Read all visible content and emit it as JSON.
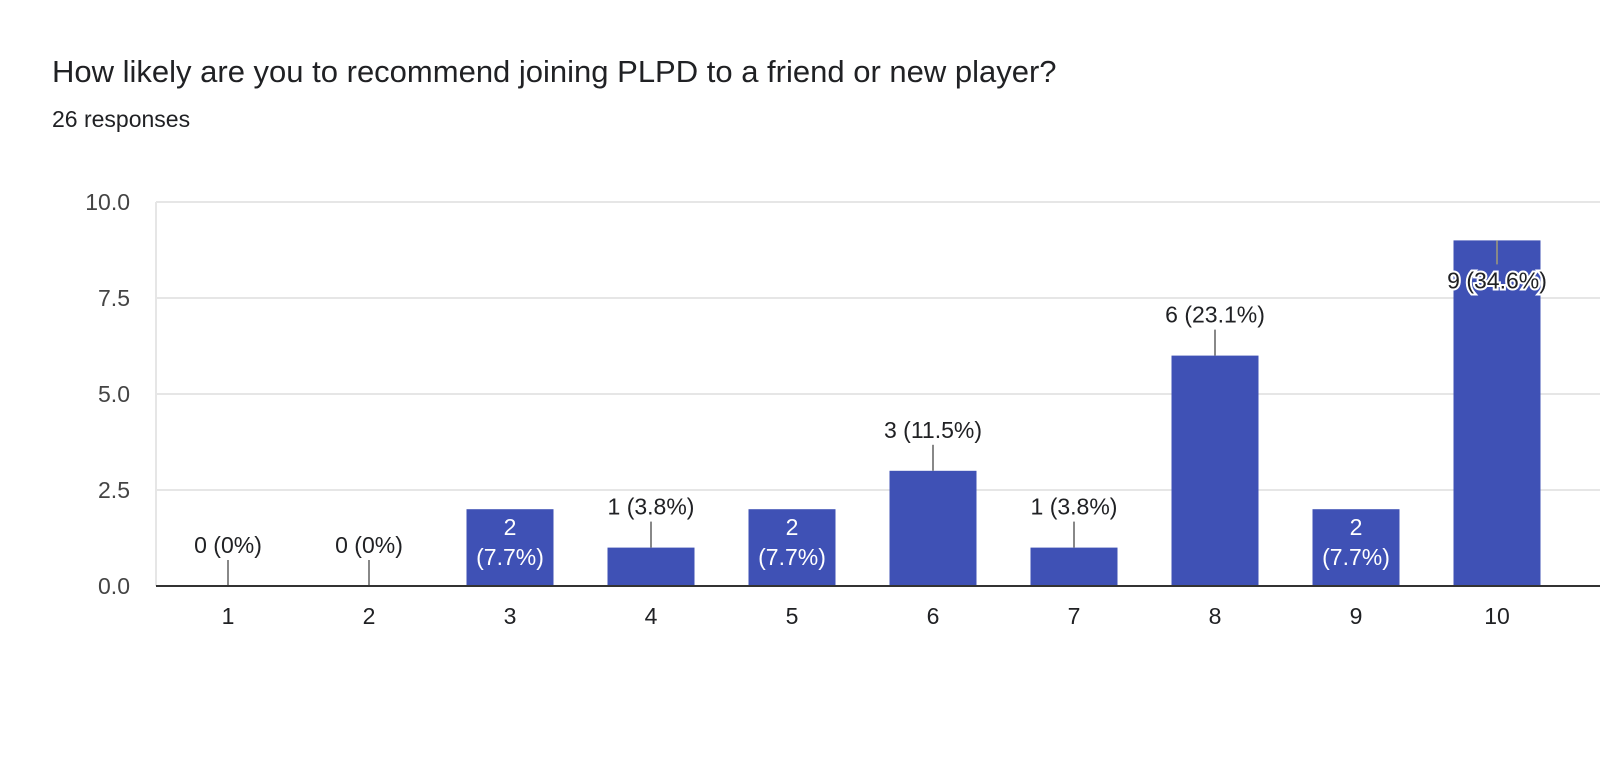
{
  "question": {
    "title": "How likely are you to recommend joining PLPD to a friend or new player?",
    "responses": "26 responses"
  },
  "chart_data": {
    "type": "bar",
    "categories": [
      "1",
      "2",
      "3",
      "4",
      "5",
      "6",
      "7",
      "8",
      "9",
      "10"
    ],
    "values": [
      0,
      0,
      2,
      1,
      2,
      3,
      1,
      6,
      2,
      9
    ],
    "labels": [
      "0 (0%)",
      "0 (0%)",
      "2 (7.7%)",
      "1 (3.8%)",
      "2 (7.7%)",
      "3 (11.5%)",
      "1 (3.8%)",
      "6 (23.1%)",
      "2 (7.7%)",
      "9 (34.6%)"
    ],
    "title": "How likely are you to recommend joining PLPD to a friend or new player?",
    "subtitle": "26 responses",
    "ylim": [
      0,
      10
    ],
    "yticks": [
      "0.0",
      "2.5",
      "5.0",
      "7.5",
      "10.0"
    ],
    "grid": true,
    "colors": {
      "bar": "#3f51b5",
      "grid": "#e6e6e6",
      "axis": "#333333",
      "label": "#202124",
      "tick": "#444444"
    }
  }
}
